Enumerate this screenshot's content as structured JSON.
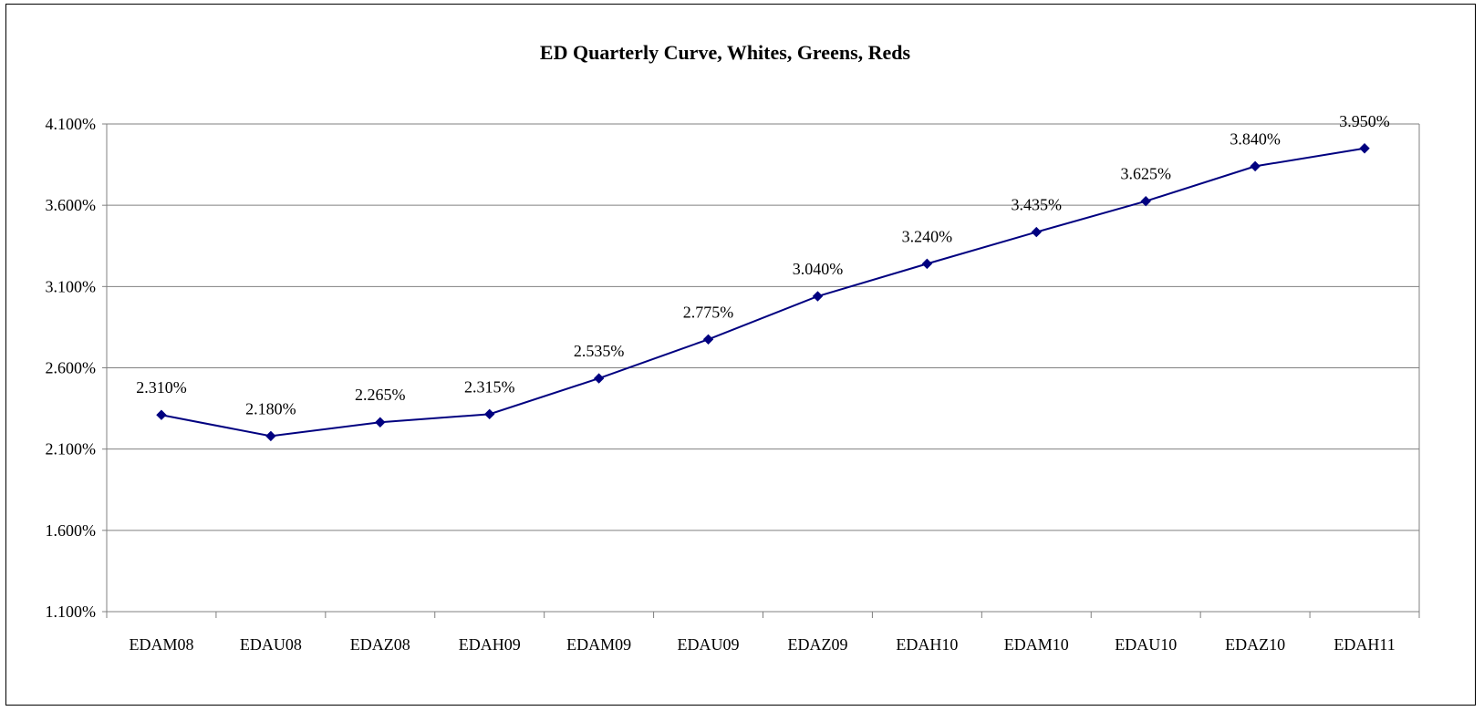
{
  "chart_data": {
    "type": "line",
    "title": "ED Quarterly Curve, Whites, Greens, Reds",
    "xlabel": "",
    "ylabel": "",
    "categories": [
      "EDAM08",
      "EDAU08",
      "EDAZ08",
      "EDAH09",
      "EDAM09",
      "EDAU09",
      "EDAZ09",
      "EDAH10",
      "EDAM10",
      "EDAU10",
      "EDAZ10",
      "EDAH11"
    ],
    "series": [
      {
        "values": [
          2.31,
          2.18,
          2.265,
          2.315,
          2.535,
          2.775,
          3.04,
          3.24,
          3.435,
          3.625,
          3.84,
          3.95
        ],
        "labels": [
          "2.310%",
          "2.180%",
          "2.265%",
          "2.315%",
          "2.535%",
          "2.775%",
          "3.040%",
          "3.240%",
          "3.435%",
          "3.625%",
          "3.840%",
          "3.950%"
        ],
        "color": "#000080",
        "marker": "diamond"
      }
    ],
    "ylim": [
      1.1,
      4.1
    ],
    "yticks": [
      1.1,
      1.6,
      2.1,
      2.6,
      3.1,
      3.6,
      4.1
    ],
    "ytick_labels": [
      "1.100%",
      "1.600%",
      "2.100%",
      "2.600%",
      "3.100%",
      "3.600%",
      "4.100%"
    ],
    "grid": true,
    "legend": "none"
  }
}
